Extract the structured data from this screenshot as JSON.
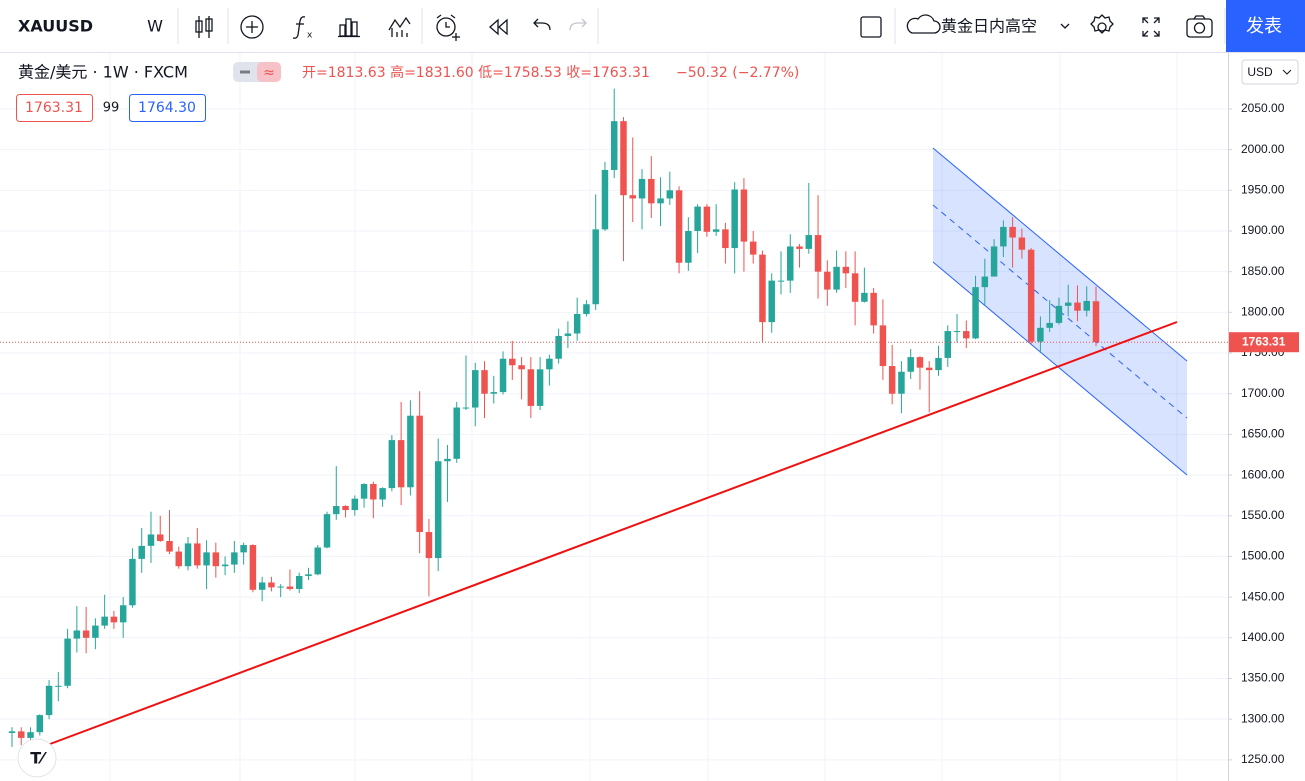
{
  "toolbar": {
    "symbol": "XAUUSD",
    "interval": "W",
    "script_name": "黄金日内高空",
    "publish": "发表"
  },
  "legend": {
    "title": "黄金/美元 · 1W · FXCM",
    "ohlc": "开=1813.63 高=1831.60 低=1758.53 收=1763.31",
    "change": "−50.32 (−2.77%)",
    "spread": "99",
    "ask": "1764.30"
  },
  "currency": "USD",
  "chart_data": {
    "type": "candlestick",
    "symbol": "XAUUSD",
    "up_color": "#26a69a",
    "down_color": "#ef5350",
    "grid": true,
    "ylim": [
      1224,
      2120
    ],
    "yticks": [
      {
        "value": 1250,
        "label": "1250.00"
      },
      {
        "value": 1300,
        "label": "1300.00"
      },
      {
        "value": 1350,
        "label": "1350.00"
      },
      {
        "value": 1400,
        "label": "1400.00"
      },
      {
        "value": 1450,
        "label": "1450.00"
      },
      {
        "value": 1500,
        "label": "1500.00"
      },
      {
        "value": 1550,
        "label": "1550.00"
      },
      {
        "value": 1600,
        "label": "1600.00"
      },
      {
        "value": 1650,
        "label": "1650.00"
      },
      {
        "value": 1700,
        "label": "1700.00"
      },
      {
        "value": 1750,
        "label": "1750.00"
      },
      {
        "value": 1800,
        "label": "1800.00"
      },
      {
        "value": 1850,
        "label": "1850.00"
      },
      {
        "value": 1900,
        "label": "1900.00"
      },
      {
        "value": 1950,
        "label": "1950.00"
      },
      {
        "value": 2000,
        "label": "2000.00"
      },
      {
        "value": 2050,
        "label": "2050.00"
      }
    ],
    "values": [
      [
        1283,
        1290,
        1266,
        1285
      ],
      [
        1285,
        1290,
        1268,
        1277
      ],
      [
        1277,
        1290,
        1272,
        1284
      ],
      [
        1284,
        1306,
        1280,
        1305
      ],
      [
        1305,
        1348,
        1300,
        1341
      ],
      [
        1341,
        1358,
        1322,
        1341
      ],
      [
        1341,
        1411,
        1338,
        1399
      ],
      [
        1399,
        1439,
        1382,
        1409
      ],
      [
        1409,
        1438,
        1381,
        1400
      ],
      [
        1400,
        1424,
        1386,
        1415
      ],
      [
        1415,
        1453,
        1411,
        1426
      ],
      [
        1426,
        1433,
        1411,
        1419
      ],
      [
        1419,
        1450,
        1400,
        1440
      ],
      [
        1440,
        1510,
        1437,
        1497
      ],
      [
        1497,
        1535,
        1480,
        1513
      ],
      [
        1513,
        1555,
        1492,
        1527
      ],
      [
        1527,
        1550,
        1518,
        1519
      ],
      [
        1519,
        1557,
        1503,
        1506
      ],
      [
        1506,
        1512,
        1485,
        1488
      ],
      [
        1488,
        1524,
        1483,
        1516
      ],
      [
        1516,
        1535,
        1485,
        1489
      ],
      [
        1489,
        1520,
        1460,
        1505
      ],
      [
        1505,
        1517,
        1474,
        1488
      ],
      [
        1488,
        1500,
        1477,
        1490
      ],
      [
        1490,
        1519,
        1480,
        1505
      ],
      [
        1505,
        1517,
        1490,
        1514
      ],
      [
        1514,
        1515,
        1456,
        1459
      ],
      [
        1459,
        1475,
        1445,
        1468
      ],
      [
        1468,
        1475,
        1457,
        1462
      ],
      [
        1462,
        1466,
        1450,
        1463
      ],
      [
        1463,
        1484,
        1458,
        1460
      ],
      [
        1460,
        1480,
        1455,
        1476
      ],
      [
        1476,
        1486,
        1471,
        1478
      ],
      [
        1478,
        1514,
        1477,
        1511
      ],
      [
        1511,
        1555,
        1510,
        1552
      ],
      [
        1552,
        1611,
        1545,
        1562
      ],
      [
        1562,
        1563,
        1548,
        1557
      ],
      [
        1557,
        1575,
        1550,
        1571
      ],
      [
        1571,
        1590,
        1560,
        1589
      ],
      [
        1589,
        1592,
        1547,
        1570
      ],
      [
        1570,
        1585,
        1561,
        1584
      ],
      [
        1584,
        1649,
        1580,
        1643
      ],
      [
        1643,
        1690,
        1563,
        1585
      ],
      [
        1585,
        1692,
        1575,
        1673
      ],
      [
        1673,
        1703,
        1504,
        1530
      ],
      [
        1530,
        1546,
        1451,
        1498
      ],
      [
        1498,
        1645,
        1482,
        1617
      ],
      [
        1617,
        1637,
        1567,
        1620
      ],
      [
        1620,
        1690,
        1615,
        1683
      ],
      [
        1683,
        1747,
        1680,
        1683
      ],
      [
        1683,
        1738,
        1660,
        1729
      ],
      [
        1729,
        1740,
        1670,
        1700
      ],
      [
        1700,
        1722,
        1688,
        1702
      ],
      [
        1702,
        1752,
        1699,
        1743
      ],
      [
        1743,
        1765,
        1717,
        1735
      ],
      [
        1735,
        1745,
        1693,
        1730
      ],
      [
        1730,
        1745,
        1670,
        1685
      ],
      [
        1685,
        1745,
        1680,
        1730
      ],
      [
        1730,
        1748,
        1710,
        1743
      ],
      [
        1743,
        1780,
        1737,
        1771
      ],
      [
        1771,
        1789,
        1756,
        1774
      ],
      [
        1774,
        1818,
        1765,
        1798
      ],
      [
        1798,
        1815,
        1795,
        1810
      ],
      [
        1810,
        1945,
        1803,
        1902
      ],
      [
        1902,
        1985,
        1900,
        1975
      ],
      [
        1975,
        2075,
        1965,
        2035
      ],
      [
        2035,
        2040,
        1863,
        1944
      ],
      [
        1944,
        2015,
        1911,
        1940
      ],
      [
        1940,
        1976,
        1902,
        1964
      ],
      [
        1964,
        1992,
        1916,
        1934
      ],
      [
        1934,
        1966,
        1906,
        1940
      ],
      [
        1940,
        1973,
        1932,
        1950
      ],
      [
        1950,
        1955,
        1848,
        1861
      ],
      [
        1861,
        1917,
        1851,
        1900
      ],
      [
        1900,
        1933,
        1873,
        1930
      ],
      [
        1930,
        1933,
        1893,
        1899
      ],
      [
        1899,
        1933,
        1894,
        1902
      ],
      [
        1902,
        1910,
        1860,
        1879
      ],
      [
        1879,
        1960,
        1848,
        1951
      ],
      [
        1951,
        1965,
        1850,
        1887
      ],
      [
        1887,
        1900,
        1860,
        1871
      ],
      [
        1871,
        1876,
        1764,
        1788
      ],
      [
        1788,
        1848,
        1775,
        1839
      ],
      [
        1839,
        1875,
        1822,
        1839
      ],
      [
        1839,
        1896,
        1824,
        1881
      ],
      [
        1881,
        1884,
        1855,
        1878
      ],
      [
        1878,
        1959,
        1872,
        1895
      ],
      [
        1895,
        1944,
        1817,
        1850
      ],
      [
        1850,
        1864,
        1808,
        1828
      ],
      [
        1828,
        1876,
        1824,
        1856
      ],
      [
        1856,
        1875,
        1830,
        1848
      ],
      [
        1848,
        1875,
        1784,
        1813
      ],
      [
        1813,
        1855,
        1812,
        1824
      ],
      [
        1824,
        1830,
        1774,
        1784
      ],
      [
        1784,
        1816,
        1717,
        1734
      ],
      [
        1734,
        1760,
        1687,
        1700
      ],
      [
        1700,
        1740,
        1676,
        1727
      ],
      [
        1727,
        1755,
        1718,
        1745
      ],
      [
        1745,
        1746,
        1705,
        1732
      ],
      [
        1732,
        1740,
        1677,
        1729
      ],
      [
        1729,
        1759,
        1722,
        1744
      ],
      [
        1744,
        1784,
        1733,
        1777
      ],
      [
        1777,
        1798,
        1763,
        1777
      ],
      [
        1777,
        1790,
        1756,
        1768
      ],
      [
        1768,
        1845,
        1767,
        1831
      ],
      [
        1831,
        1866,
        1808,
        1844
      ],
      [
        1844,
        1890,
        1844,
        1881
      ],
      [
        1881,
        1913,
        1868,
        1905
      ],
      [
        1905,
        1917,
        1855,
        1892
      ],
      [
        1892,
        1903,
        1866,
        1877
      ],
      [
        1877,
        1879,
        1761,
        1764
      ],
      [
        1764,
        1795,
        1750,
        1781
      ],
      [
        1781,
        1815,
        1776,
        1787
      ],
      [
        1787,
        1818,
        1785,
        1808
      ],
      [
        1808,
        1834,
        1795,
        1812
      ],
      [
        1812,
        1833,
        1789,
        1802
      ],
      [
        1802,
        1832,
        1795,
        1814
      ],
      [
        1813.63,
        1831.6,
        1758.53,
        1763.31
      ]
    ]
  }
}
